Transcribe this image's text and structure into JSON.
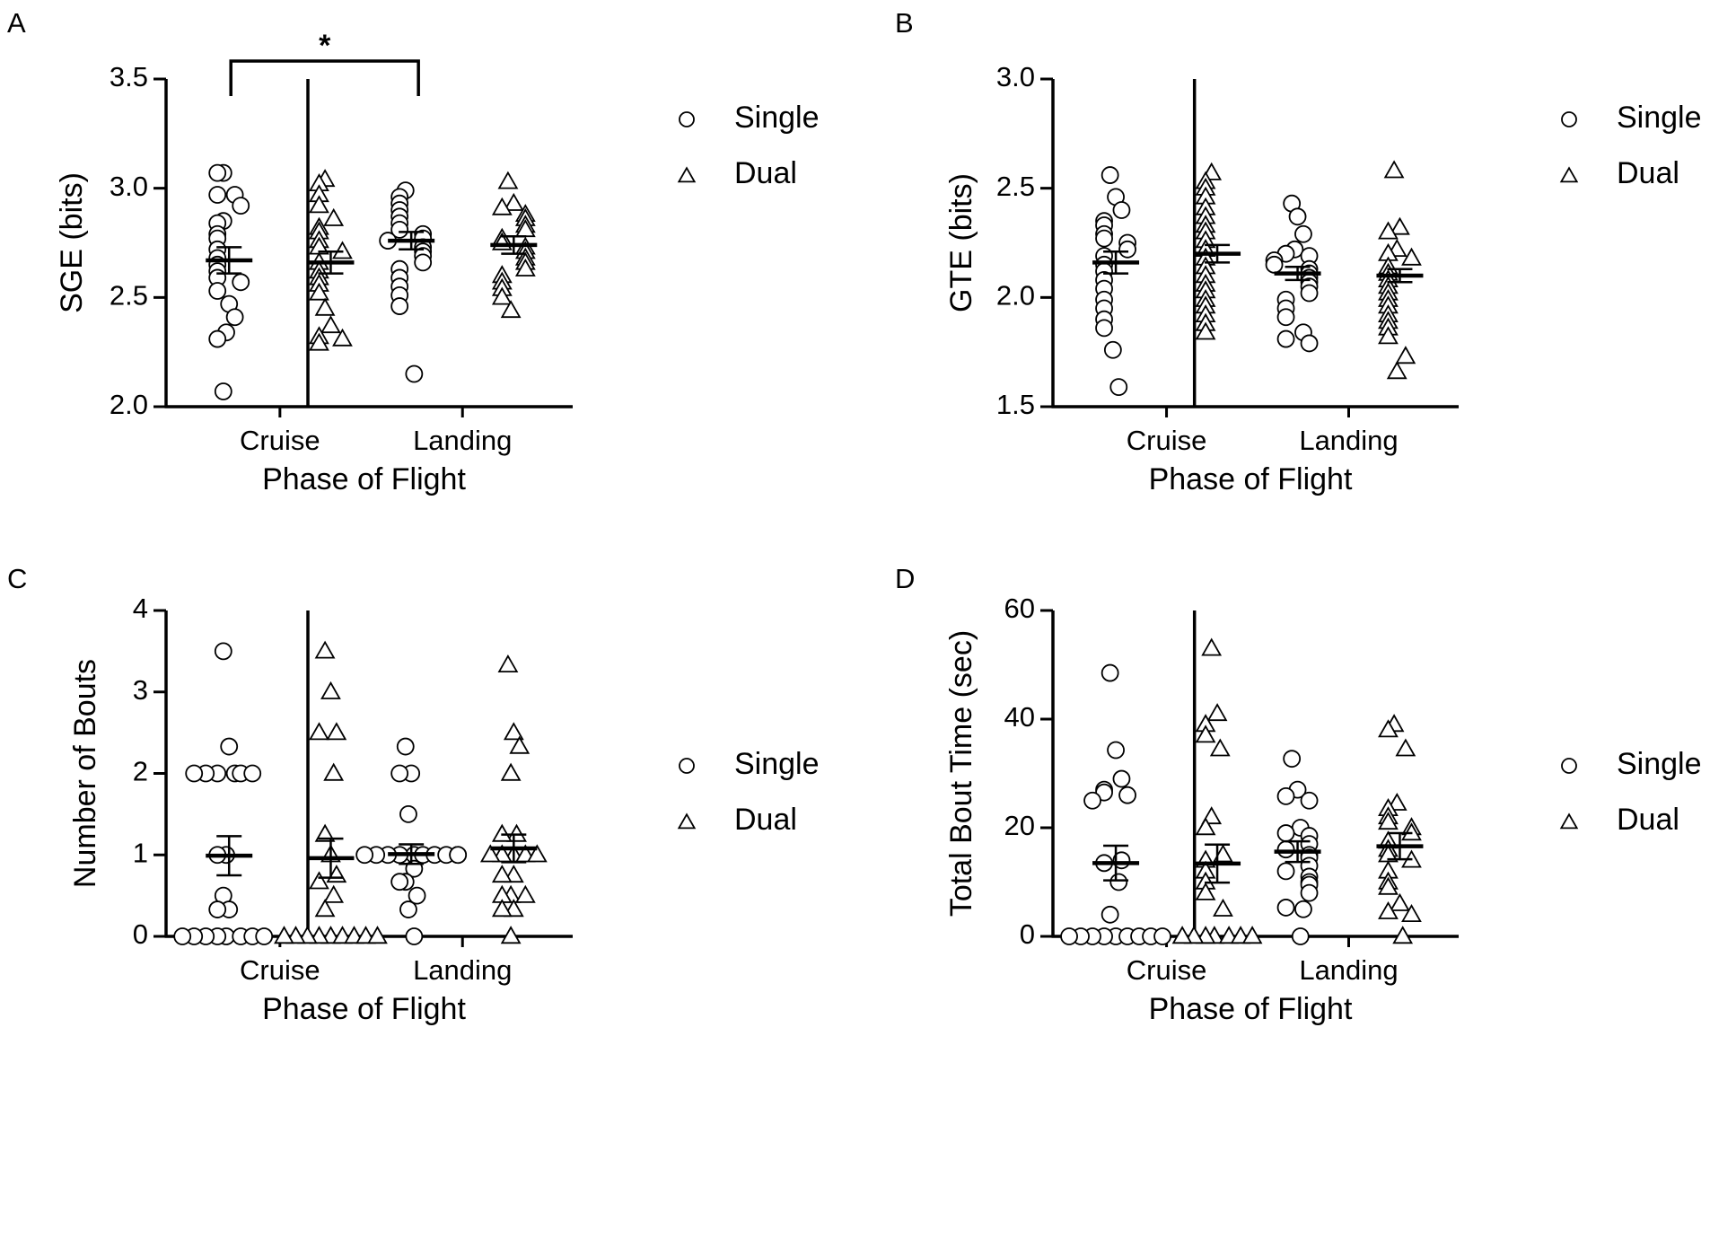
{
  "chart_data": [
    {
      "panel": "A",
      "type": "scatter",
      "title": "",
      "xlabel": "Phase of Flight",
      "ylabel": "SGE (bits)",
      "categories": [
        "Cruise",
        "Landing"
      ],
      "ylim": [
        2.0,
        3.5
      ],
      "yticks": [
        2.0,
        2.5,
        3.0,
        3.5
      ],
      "ytick_labels": [
        "2.0",
        "2.5",
        "3.0",
        "3.5"
      ],
      "legend": {
        "placement": "top-right",
        "entries": [
          "Single",
          "Dual"
        ]
      },
      "significance": {
        "from": "Cruise-Single",
        "to": "Landing-Single",
        "label": "*"
      },
      "series": [
        {
          "name": "Single",
          "marker": "circle",
          "groups": [
            {
              "category": "Cruise",
              "mean": 2.67,
              "sem": 0.06,
              "values": [
                3.07,
                3.07,
                2.97,
                2.97,
                2.92,
                2.85,
                2.84,
                2.79,
                2.77,
                2.72,
                2.68,
                2.65,
                2.62,
                2.59,
                2.57,
                2.53,
                2.47,
                2.41,
                2.34,
                2.31,
                2.07
              ]
            },
            {
              "category": "Landing",
              "mean": 2.76,
              "sem": 0.04,
              "values": [
                2.99,
                2.96,
                2.93,
                2.9,
                2.87,
                2.84,
                2.81,
                2.79,
                2.77,
                2.76,
                2.73,
                2.71,
                2.69,
                2.66,
                2.63,
                2.59,
                2.55,
                2.51,
                2.46,
                2.15
              ]
            }
          ]
        },
        {
          "name": "Dual",
          "marker": "triangle",
          "groups": [
            {
              "category": "Cruise",
              "mean": 2.66,
              "sem": 0.05,
              "values": [
                3.04,
                3.02,
                2.97,
                2.92,
                2.86,
                2.82,
                2.8,
                2.76,
                2.73,
                2.71,
                2.66,
                2.62,
                2.59,
                2.56,
                2.52,
                2.45,
                2.37,
                2.32,
                2.29,
                2.31
              ]
            },
            {
              "category": "Landing",
              "mean": 2.74,
              "sem": 0.04,
              "values": [
                3.03,
                2.93,
                2.91,
                2.88,
                2.86,
                2.83,
                2.81,
                2.77,
                2.75,
                2.73,
                2.71,
                2.68,
                2.66,
                2.63,
                2.6,
                2.57,
                2.54,
                2.5,
                2.44
              ]
            }
          ]
        }
      ]
    },
    {
      "panel": "B",
      "type": "scatter",
      "title": "",
      "xlabel": "Phase of Flight",
      "ylabel": "GTE (bits)",
      "categories": [
        "Cruise",
        "Landing"
      ],
      "ylim": [
        1.5,
        3.0
      ],
      "yticks": [
        1.5,
        2.0,
        2.5,
        3.0
      ],
      "ytick_labels": [
        "1.5",
        "2.0",
        "2.5",
        "3.0"
      ],
      "legend": {
        "placement": "top-right",
        "entries": [
          "Single",
          "Dual"
        ]
      },
      "series": [
        {
          "name": "Single",
          "marker": "circle",
          "groups": [
            {
              "category": "Cruise",
              "mean": 2.16,
              "sem": 0.05,
              "values": [
                2.56,
                2.46,
                2.4,
                2.35,
                2.33,
                2.29,
                2.27,
                2.25,
                2.22,
                2.19,
                2.15,
                2.12,
                2.08,
                2.04,
                1.99,
                1.95,
                1.9,
                1.86,
                1.76,
                1.59
              ]
            },
            {
              "category": "Landing",
              "mean": 2.11,
              "sem": 0.03,
              "values": [
                2.43,
                2.37,
                2.29,
                2.22,
                2.2,
                2.19,
                2.17,
                2.15,
                2.13,
                2.11,
                2.09,
                2.07,
                2.05,
                2.02,
                1.99,
                1.95,
                1.91,
                1.84,
                1.81,
                1.79
              ]
            }
          ]
        },
        {
          "name": "Dual",
          "marker": "triangle",
          "groups": [
            {
              "category": "Cruise",
              "mean": 2.2,
              "sem": 0.04,
              "values": [
                2.57,
                2.53,
                2.5,
                2.46,
                2.41,
                2.37,
                2.33,
                2.3,
                2.26,
                2.22,
                2.18,
                2.14,
                2.1,
                2.06,
                2.03,
                1.99,
                1.96,
                1.92,
                1.88,
                1.84
              ]
            },
            {
              "category": "Landing",
              "mean": 2.1,
              "sem": 0.03,
              "values": [
                2.58,
                2.32,
                2.3,
                2.22,
                2.2,
                2.18,
                2.14,
                2.11,
                2.08,
                2.05,
                2.02,
                1.99,
                1.96,
                1.92,
                1.89,
                1.86,
                1.82,
                1.73,
                1.66
              ]
            }
          ]
        }
      ]
    },
    {
      "panel": "C",
      "type": "scatter",
      "title": "",
      "xlabel": "Phase of Flight",
      "ylabel": "Number of Bouts",
      "categories": [
        "Cruise",
        "Landing"
      ],
      "ylim": [
        0,
        4
      ],
      "yticks": [
        0,
        1,
        2,
        3,
        4
      ],
      "ytick_labels": [
        "0",
        "1",
        "2",
        "3",
        "4"
      ],
      "legend": {
        "placement": "top-right",
        "entries": [
          "Single",
          "Dual"
        ]
      },
      "series": [
        {
          "name": "Single",
          "marker": "circle",
          "groups": [
            {
              "category": "Cruise",
              "mean": 0.99,
              "sem": 0.24,
              "values": [
                3.5,
                2.33,
                2.0,
                2.0,
                2.0,
                2.0,
                2.0,
                2.0,
                1.0,
                1.0,
                0.5,
                0.33,
                0.33,
                0,
                0,
                0,
                0,
                0,
                0,
                0,
                0
              ]
            },
            {
              "category": "Landing",
              "mean": 1.01,
              "sem": 0.12,
              "values": [
                2.33,
                2.0,
                2.0,
                1.5,
                1.0,
                1.0,
                1.0,
                1.0,
                1.0,
                1.0,
                1.0,
                1.0,
                1.0,
                1.0,
                0.83,
                0.67,
                0.67,
                0.5,
                0.33,
                0
              ]
            }
          ]
        },
        {
          "name": "Dual",
          "marker": "triangle",
          "groups": [
            {
              "category": "Cruise",
              "mean": 0.96,
              "sem": 0.24,
              "values": [
                3.5,
                3.0,
                2.5,
                2.5,
                2.0,
                1.25,
                1.0,
                0.75,
                0.67,
                0.5,
                0.33,
                0,
                0,
                0,
                0,
                0,
                0,
                0,
                0,
                0
              ]
            },
            {
              "category": "Landing",
              "mean": 1.08,
              "sem": 0.17,
              "values": [
                3.33,
                2.5,
                2.33,
                2.0,
                1.25,
                1.25,
                1.0,
                1.0,
                1.0,
                1.0,
                1.0,
                0.75,
                0.75,
                0.5,
                0.5,
                0.5,
                0.33,
                0.33,
                0
              ]
            }
          ]
        }
      ]
    },
    {
      "panel": "D",
      "type": "scatter",
      "title": "",
      "xlabel": "Phase of Flight",
      "ylabel": "Total Bout Time (sec)",
      "categories": [
        "Cruise",
        "Landing"
      ],
      "ylim": [
        0,
        60
      ],
      "yticks": [
        0,
        20,
        40,
        60
      ],
      "ytick_labels": [
        "0",
        "20",
        "40",
        "60"
      ],
      "legend": {
        "placement": "top-right",
        "entries": [
          "Single",
          "Dual"
        ]
      },
      "series": [
        {
          "name": "Single",
          "marker": "circle",
          "groups": [
            {
              "category": "Cruise",
              "mean": 13.5,
              "sem": 3.2,
              "values": [
                48.5,
                34.3,
                29.0,
                27.0,
                26.5,
                26.0,
                25.0,
                14.0,
                13.5,
                10.0,
                4.0,
                0,
                0,
                0,
                0,
                0,
                0,
                0,
                0,
                0
              ]
            },
            {
              "category": "Landing",
              "mean": 15.6,
              "sem": 1.9,
              "values": [
                32.7,
                27.0,
                25.8,
                25.0,
                20.0,
                19.0,
                18.5,
                17.0,
                16.0,
                15.0,
                14.5,
                13.0,
                12.0,
                11.0,
                10.0,
                9.5,
                8.0,
                5.0,
                5.3,
                0
              ]
            }
          ]
        },
        {
          "name": "Dual",
          "marker": "triangle",
          "groups": [
            {
              "category": "Cruise",
              "mean": 13.4,
              "sem": 3.5,
              "values": [
                53.0,
                41.0,
                39.0,
                37.0,
                34.5,
                22.0,
                20.0,
                15.0,
                14.0,
                12.0,
                10.0,
                8.0,
                5.0,
                0,
                0,
                0,
                0,
                0,
                0,
                0
              ]
            },
            {
              "category": "Landing",
              "mean": 16.6,
              "sem": 2.4,
              "values": [
                39.0,
                38.0,
                34.5,
                24.5,
                23.5,
                22.0,
                21.0,
                20.0,
                19.0,
                17.5,
                16.0,
                15.0,
                14.0,
                12.0,
                10.0,
                9.0,
                6.0,
                4.5,
                4.0,
                0
              ]
            }
          ]
        }
      ]
    }
  ]
}
